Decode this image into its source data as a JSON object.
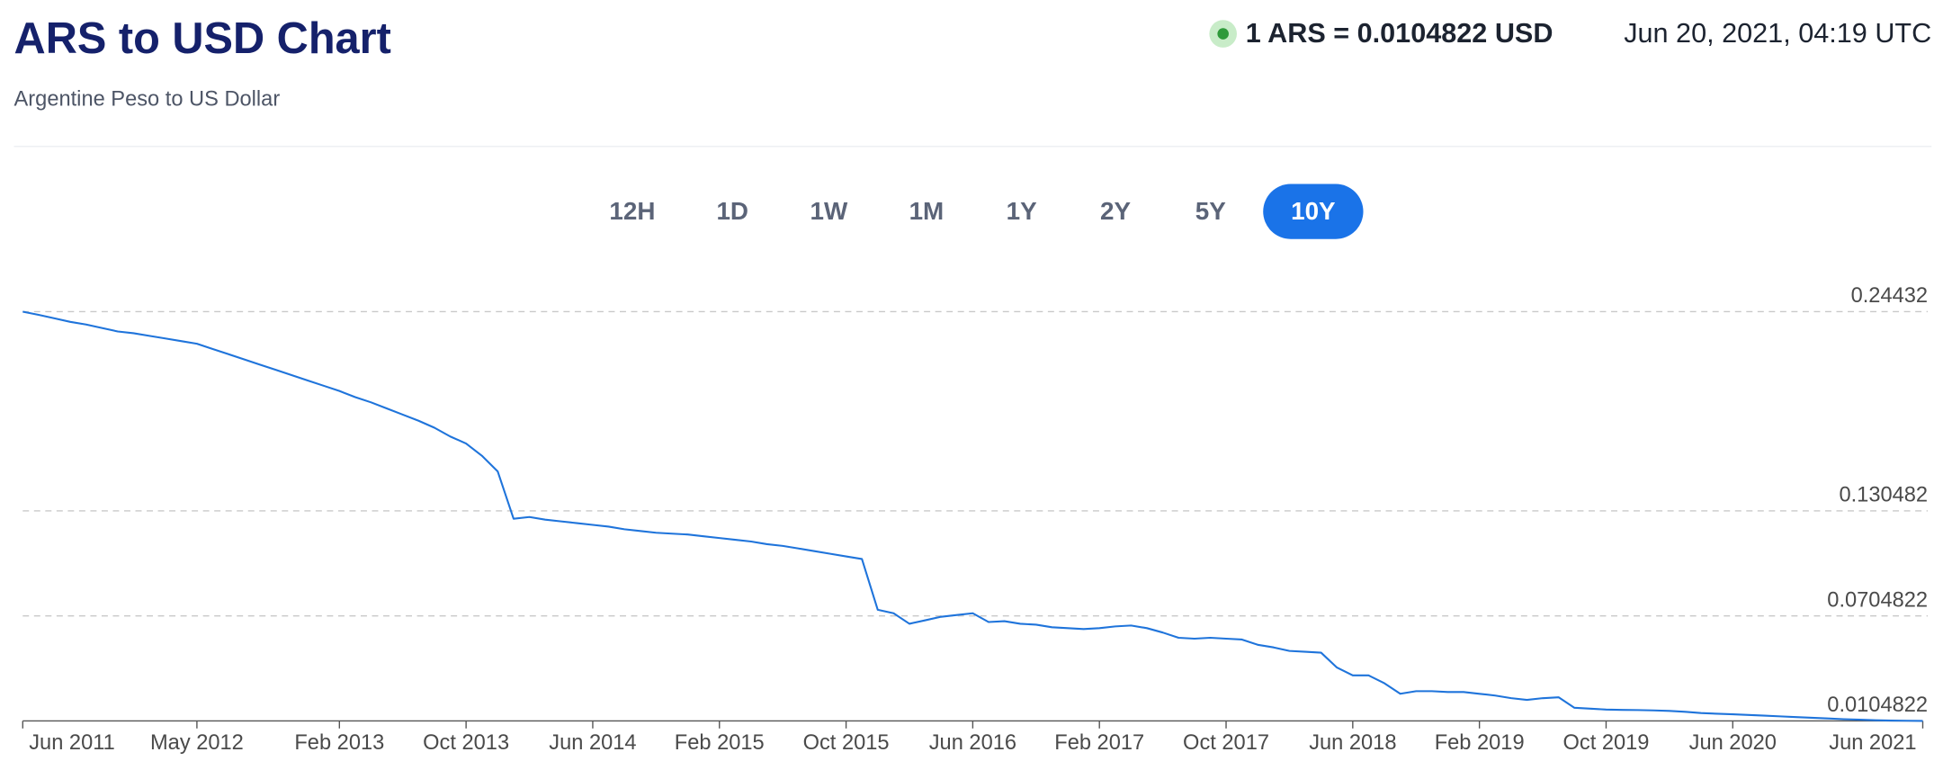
{
  "header": {
    "title": "ARS to USD Chart",
    "subtitle": "Argentine Peso to US Dollar",
    "rate": "1 ARS = 0.0104822 USD",
    "timestamp": "Jun 20, 2021, 04:19 UTC"
  },
  "range_buttons": [
    "12H",
    "1D",
    "1W",
    "1M",
    "1Y",
    "2Y",
    "5Y",
    "10Y"
  ],
  "active_range": "10Y",
  "chart_data": {
    "type": "line",
    "x": [
      "Jun 2011",
      "Jul 2011",
      "Aug 2011",
      "Sep 2011",
      "Oct 2011",
      "Nov 2011",
      "Dec 2011",
      "Jan 2012",
      "Feb 2012",
      "Mar 2012",
      "Apr 2012",
      "May 2012",
      "Jun 2012",
      "Jul 2012",
      "Aug 2012",
      "Sep 2012",
      "Oct 2012",
      "Nov 2012",
      "Dec 2012",
      "Jan 2013",
      "Feb 2013",
      "Mar 2013",
      "Apr 2013",
      "May 2013",
      "Jun 2013",
      "Jul 2013",
      "Aug 2013",
      "Sep 2013",
      "Oct 2013",
      "Nov 2013",
      "Dec 2013",
      "Jan 2014",
      "Feb 2014",
      "Mar 2014",
      "Apr 2014",
      "May 2014",
      "Jun 2014",
      "Jul 2014",
      "Aug 2014",
      "Sep 2014",
      "Oct 2014",
      "Nov 2014",
      "Dec 2014",
      "Jan 2015",
      "Feb 2015",
      "Mar 2015",
      "Apr 2015",
      "May 2015",
      "Jun 2015",
      "Jul 2015",
      "Aug 2015",
      "Sep 2015",
      "Oct 2015",
      "Nov 2015",
      "Dec 2015",
      "Jan 2016",
      "Feb 2016",
      "Mar 2016",
      "Apr 2016",
      "May 2016",
      "Jun 2016",
      "Jul 2016",
      "Aug 2016",
      "Sep 2016",
      "Oct 2016",
      "Nov 2016",
      "Dec 2016",
      "Jan 2017",
      "Feb 2017",
      "Mar 2017",
      "Apr 2017",
      "May 2017",
      "Jun 2017",
      "Jul 2017",
      "Aug 2017",
      "Sep 2017",
      "Oct 2017",
      "Nov 2017",
      "Dec 2017",
      "Jan 2018",
      "Feb 2018",
      "Mar 2018",
      "Apr 2018",
      "May 2018",
      "Jun 2018",
      "Jul 2018",
      "Aug 2018",
      "Sep 2018",
      "Oct 2018",
      "Nov 2018",
      "Dec 2018",
      "Jan 2019",
      "Feb 2019",
      "Mar 2019",
      "Apr 2019",
      "May 2019",
      "Jun 2019",
      "Jul 2019",
      "Aug 2019",
      "Sep 2019",
      "Oct 2019",
      "Nov 2019",
      "Dec 2019",
      "Jan 2020",
      "Feb 2020",
      "Mar 2020",
      "Apr 2020",
      "May 2020",
      "Jun 2020",
      "Jul 2020",
      "Aug 2020",
      "Sep 2020",
      "Oct 2020",
      "Nov 2020",
      "Dec 2020",
      "Jan 2021",
      "Feb 2021",
      "Mar 2021",
      "Apr 2021",
      "May 2021",
      "Jun 2021"
    ],
    "series": [
      {
        "name": "ARS/USD",
        "color": "#1f74db",
        "values": [
          0.2443,
          0.2425,
          0.2405,
          0.2385,
          0.237,
          0.235,
          0.233,
          0.232,
          0.2305,
          0.229,
          0.2275,
          0.226,
          0.223,
          0.22,
          0.217,
          0.214,
          0.211,
          0.208,
          0.205,
          0.202,
          0.199,
          0.1955,
          0.1925,
          0.189,
          0.1855,
          0.182,
          0.178,
          0.173,
          0.169,
          0.162,
          0.153,
          0.126,
          0.127,
          0.1255,
          0.1245,
          0.1235,
          0.1225,
          0.1215,
          0.12,
          0.119,
          0.118,
          0.1175,
          0.117,
          0.116,
          0.115,
          0.114,
          0.113,
          0.1115,
          0.1105,
          0.109,
          0.1075,
          0.106,
          0.1045,
          0.103,
          0.074,
          0.072,
          0.066,
          0.068,
          0.07,
          0.071,
          0.072,
          0.067,
          0.0675,
          0.066,
          0.0655,
          0.064,
          0.0635,
          0.063,
          0.0635,
          0.0645,
          0.065,
          0.0635,
          0.061,
          0.058,
          0.0575,
          0.058,
          0.0575,
          0.057,
          0.054,
          0.0525,
          0.0505,
          0.05,
          0.0495,
          0.041,
          0.0365,
          0.0365,
          0.032,
          0.026,
          0.0275,
          0.0275,
          0.027,
          0.027,
          0.026,
          0.025,
          0.0235,
          0.0225,
          0.0235,
          0.024,
          0.018,
          0.0175,
          0.017,
          0.0168,
          0.0167,
          0.0165,
          0.0162,
          0.0157,
          0.015,
          0.0146,
          0.0143,
          0.0139,
          0.0135,
          0.0131,
          0.0127,
          0.0123,
          0.0119,
          0.0115,
          0.0112,
          0.0109,
          0.0107,
          0.0106,
          0.0104822
        ]
      }
    ],
    "xticks": [
      "Jun 2011",
      "May 2012",
      "Feb 2013",
      "Oct 2013",
      "Jun 2014",
      "Feb 2015",
      "Oct 2015",
      "Jun 2016",
      "Feb 2017",
      "Oct 2017",
      "Jun 2018",
      "Feb 2019",
      "Oct 2019",
      "Jun 2020",
      "Jun 2021"
    ],
    "ylim": [
      0.0104822,
      0.24432
    ],
    "yticks": [
      0.0104822,
      0.0704822,
      0.130482,
      0.24432
    ],
    "grid": true
  }
}
